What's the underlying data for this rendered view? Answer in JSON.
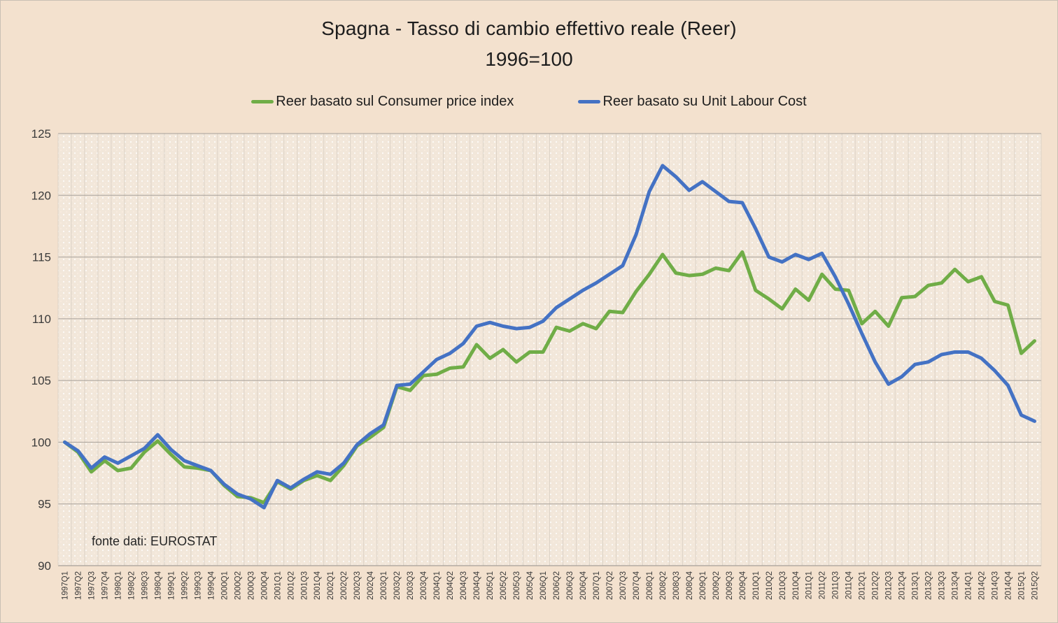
{
  "window": {
    "background": "#F3E1CE",
    "plot_background": "#F2E7DA",
    "gridline_major_color": "#A6A099",
    "gridline_vertical_color": "#DCD2C6",
    "axis_color": "#A6A099",
    "text_color": "#3a3a3a"
  },
  "chart_data": {
    "type": "line",
    "title": "Spagna - Tasso di cambio effettivo reale (Reer)",
    "subtitle": "1996=100",
    "source_note": "fonte dati: EUROSTAT",
    "xlabel": "",
    "ylabel": "",
    "ylim": [
      90,
      125
    ],
    "y_ticks": [
      90,
      95,
      100,
      105,
      110,
      115,
      120,
      125
    ],
    "grid": "horizontal major gray lines + vertical light category lines",
    "legend_position": "top",
    "x_labels": [
      "1997Q1",
      "1997Q2",
      "1997Q3",
      "1997Q4",
      "1998Q1",
      "1998Q2",
      "1998Q3",
      "1998Q4",
      "1999Q1",
      "1999Q2",
      "1999Q3",
      "1999Q4",
      "2000Q1",
      "2000Q2",
      "2000Q3",
      "2000Q4",
      "2001Q1",
      "2001Q2",
      "2001Q3",
      "2001Q4",
      "2002Q1",
      "2002Q2",
      "2002Q3",
      "2002Q4",
      "2003Q1",
      "2003Q2",
      "2003Q3",
      "2003Q4",
      "2004Q1",
      "2004Q2",
      "2004Q3",
      "2004Q4",
      "2005Q1",
      "2005Q2",
      "2005Q3",
      "2005Q4",
      "2006Q1",
      "2006Q2",
      "2006Q3",
      "2006Q4",
      "2007Q1",
      "2007Q2",
      "2007Q3",
      "2007Q4",
      "2008Q1",
      "2008Q2",
      "2008Q3",
      "2008Q4",
      "2009Q1",
      "2009Q2",
      "2009Q3",
      "2009Q4",
      "2010Q1",
      "2010Q2",
      "2010Q3",
      "2010Q4",
      "2011Q1",
      "2011Q2",
      "2011Q3",
      "2011Q4",
      "2012Q1",
      "2012Q2",
      "2012Q3",
      "2012Q4",
      "2013Q1",
      "2013Q2",
      "2013Q3",
      "2013Q4",
      "2014Q1",
      "2014Q2",
      "2014Q3",
      "2014Q4",
      "2015Q1",
      "2015Q2"
    ],
    "series": [
      {
        "name": "Reer basato sul Consumer price index",
        "color": "#70AD47",
        "values": [
          100.0,
          99.2,
          97.6,
          98.5,
          97.7,
          97.9,
          99.2,
          100.1,
          99.0,
          98.0,
          97.9,
          97.7,
          96.5,
          95.6,
          95.5,
          95.1,
          96.8,
          96.2,
          96.9,
          97.3,
          96.9,
          98.1,
          99.7,
          100.4,
          101.2,
          104.5,
          104.2,
          105.4,
          105.5,
          106.0,
          106.1,
          107.9,
          106.8,
          107.5,
          106.5,
          107.3,
          107.3,
          109.3,
          109.0,
          109.6,
          109.2,
          110.6,
          110.5,
          112.2,
          113.6,
          115.2,
          113.7,
          113.5,
          113.6,
          114.1,
          113.9,
          115.4,
          112.3,
          111.6,
          110.8,
          112.4,
          111.5,
          113.6,
          112.4,
          112.3,
          109.6,
          110.6,
          109.4,
          111.7,
          111.8,
          112.7,
          112.9,
          114.0,
          113.0,
          113.4,
          111.4,
          111.1,
          107.2,
          108.2
        ]
      },
      {
        "name": "Reer basato su Unit Labour Cost",
        "color": "#4472C4",
        "values": [
          100.0,
          99.3,
          97.9,
          98.8,
          98.3,
          98.9,
          99.5,
          100.6,
          99.4,
          98.5,
          98.1,
          97.7,
          96.6,
          95.8,
          95.4,
          94.7,
          96.9,
          96.3,
          97.0,
          97.6,
          97.4,
          98.3,
          99.8,
          100.7,
          101.4,
          104.6,
          104.7,
          105.7,
          106.7,
          107.2,
          108.0,
          109.4,
          109.7,
          109.4,
          109.2,
          109.3,
          109.8,
          110.9,
          111.6,
          112.3,
          112.9,
          113.6,
          114.3,
          116.8,
          120.3,
          122.4,
          121.5,
          120.4,
          121.1,
          120.3,
          119.5,
          119.4,
          117.3,
          115.0,
          114.6,
          115.2,
          114.8,
          115.3,
          113.4,
          111.2,
          108.8,
          106.5,
          104.7,
          105.3,
          106.3,
          106.5,
          107.1,
          107.3,
          107.3,
          106.8,
          105.8,
          104.6,
          102.2,
          101.7
        ]
      }
    ]
  }
}
